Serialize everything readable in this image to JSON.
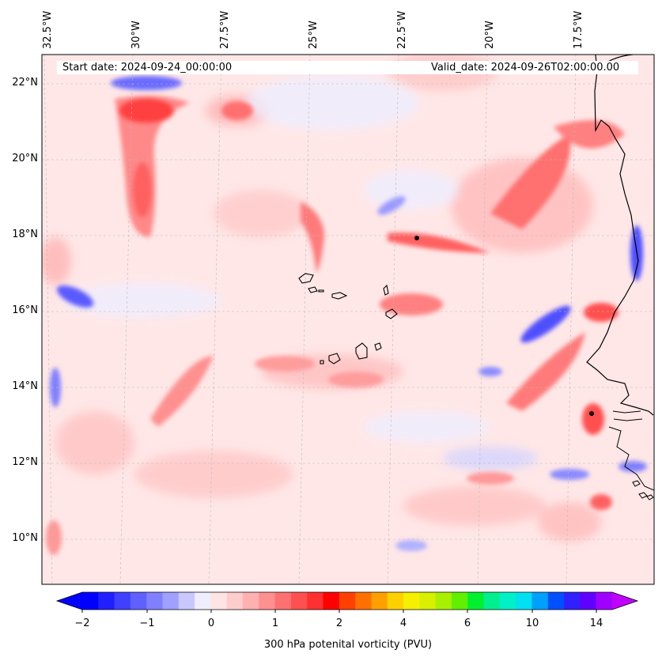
{
  "header": {
    "start_date": "Start date: 2024-09-24_00:00:00",
    "valid_date": "Valid_date: 2024-09-26T02:00:00.00"
  },
  "axes": {
    "longitude_labels": [
      "32.5°W",
      "30°W",
      "27.5°W",
      "25°W",
      "22.5°W",
      "20°W",
      "17.5°W"
    ],
    "longitude_values": [
      -32.5,
      -30,
      -27.5,
      -25,
      -22.5,
      -20,
      -17.5
    ],
    "latitude_labels": [
      "22°N",
      "20°N",
      "18°N",
      "16°N",
      "14°N",
      "12°N",
      "10°N"
    ],
    "latitude_values": [
      22,
      20,
      18,
      16,
      14,
      12,
      10
    ],
    "lon_range": [
      -32.6,
      -15.4
    ],
    "lat_range": [
      8.9,
      22.8
    ]
  },
  "colorbar": {
    "label": "300 hPa potenital vorticity (PVU)",
    "tick_labels": [
      "−2",
      "−1",
      "0",
      "1",
      "2",
      "4",
      "6",
      "10",
      "14"
    ],
    "colors": [
      "#0000ff",
      "#2020ff",
      "#4040ff",
      "#6060ff",
      "#8080ff",
      "#a0a0ff",
      "#c8c8ff",
      "#eeeeff",
      "#ffe4e4",
      "#ffcccc",
      "#ffb0b0",
      "#ff9090",
      "#ff7070",
      "#ff5050",
      "#ff3030",
      "#ff0000",
      "#ff4000",
      "#ff7000",
      "#ffa000",
      "#ffd000",
      "#f5ef00",
      "#d8ef00",
      "#a8f000",
      "#60f000",
      "#00f030",
      "#00f090",
      "#00f0c8",
      "#00e0f0",
      "#00a0ff",
      "#0050ff",
      "#3020ff",
      "#6000ff",
      "#a000ff"
    ],
    "extend_min_color": "#0000ff",
    "extend_max_color": "#c000ff"
  },
  "map": {
    "background_color": "#ffe7e7",
    "positive_color": "#ff8a8a",
    "strong_positive_color": "#ff2020",
    "negative_color": "#b8b8ff",
    "strong_negative_color": "#3a3aff",
    "coastline_color": "#000000"
  }
}
